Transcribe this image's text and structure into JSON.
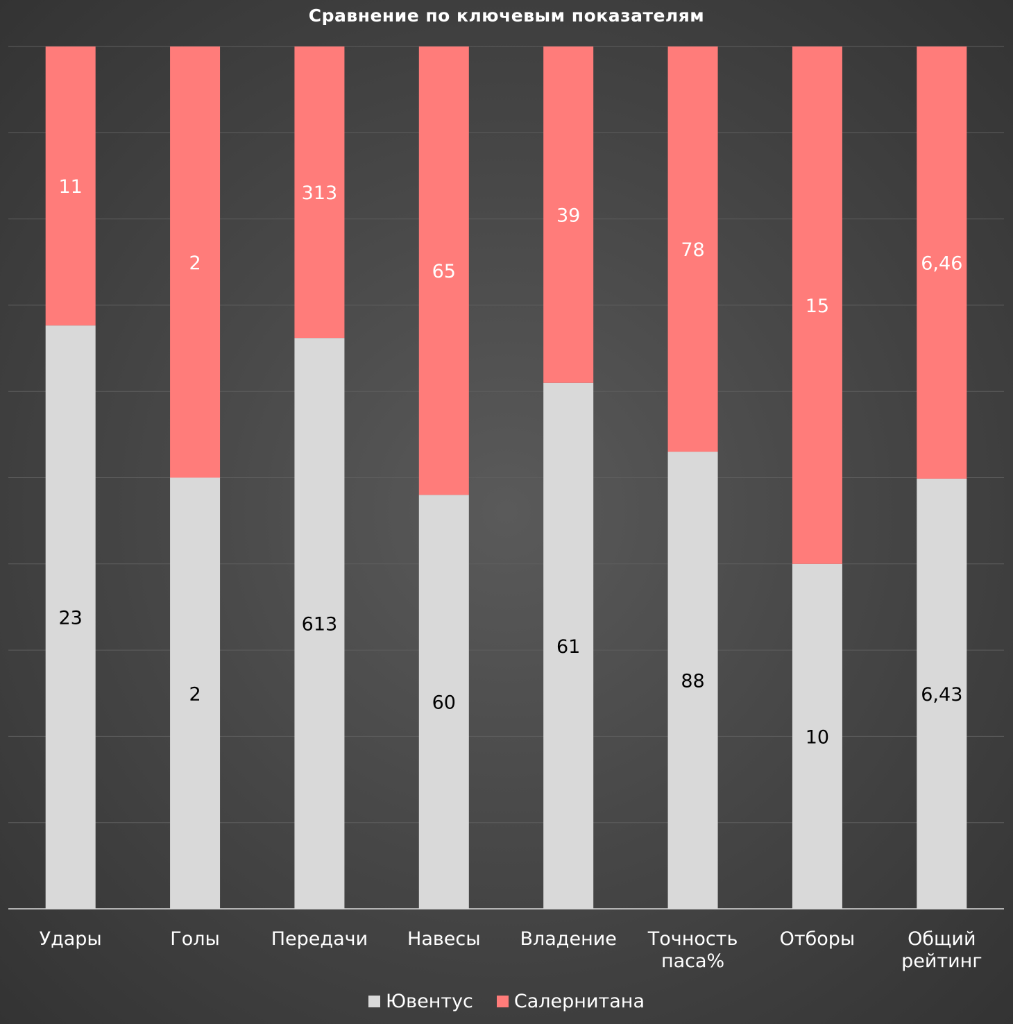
{
  "chart_data": {
    "type": "bar",
    "stacked": "percent",
    "title": "Сравнение по ключевым показателям",
    "categories": [
      "Удары",
      "Голы",
      "Передачи",
      "Навесы",
      "Владение",
      "Точность паса%",
      "Отборы",
      "Общий рейтинг"
    ],
    "series": [
      {
        "name": "Ювентус",
        "color": "#d9d9d9",
        "values": [
          23,
          2,
          613,
          60,
          61,
          88,
          10,
          6.43
        ],
        "labels": [
          "23",
          "2",
          "613",
          "60",
          "61",
          "88",
          "10",
          "6,43"
        ]
      },
      {
        "name": "Салернитана",
        "color": "#ff7c7a",
        "values": [
          11,
          2,
          313,
          65,
          39,
          78,
          15,
          6.46
        ],
        "labels": [
          "11",
          "2",
          "313",
          "65",
          "39",
          "78",
          "15",
          "6,46"
        ]
      }
    ],
    "ylim": [
      0,
      100
    ],
    "grid": true,
    "legend": "bottom"
  }
}
